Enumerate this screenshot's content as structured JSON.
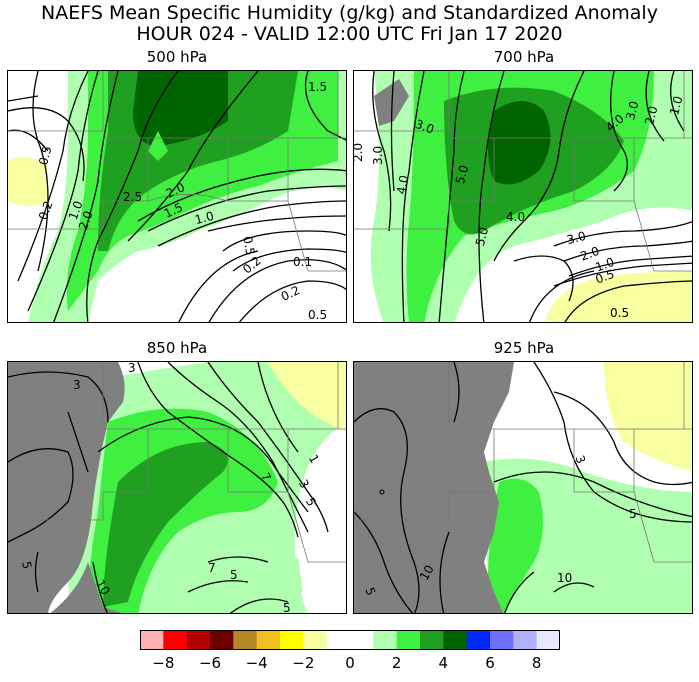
{
  "title_line1": "NAEFS Mean Specific Humidity (g/kg) and Standardized Anomaly",
  "title_line2": "HOUR 024 - VALID 12:00 UTC Fri Jan 17 2020",
  "panels": [
    {
      "id": "p500",
      "title": "500 hPa",
      "contour_labels": [
        "1.5",
        "0.5",
        "0.2",
        "1.0",
        "2.0",
        "2.5",
        "2.0",
        "1.5",
        "1.0",
        "0.5",
        "0.2",
        "0.1",
        "0.2",
        "0.5"
      ]
    },
    {
      "id": "p700",
      "title": "700 hPa",
      "contour_labels": [
        "1.0",
        "2.0",
        "3.0",
        "4.0",
        "3.0",
        "2.0",
        "3.0",
        "4.0",
        "5.0",
        "4.0",
        "5.0",
        "3.0",
        "2.0",
        "1.0",
        "0.5",
        "0.5"
      ]
    },
    {
      "id": "p850",
      "title": "850 hPa",
      "contour_labels": [
        "3",
        "3",
        "1",
        "3",
        "5",
        "7",
        "5",
        "5",
        "7",
        "5",
        "10"
      ]
    },
    {
      "id": "p925",
      "title": "925 hPa",
      "contour_labels": [
        "3",
        "5",
        "10",
        "10",
        "5"
      ]
    }
  ],
  "colorbar": {
    "ticks": [
      "−8",
      "−6",
      "−4",
      "−2",
      "0",
      "2",
      "4",
      "6",
      "8"
    ],
    "colors": [
      "#ffb0b0",
      "#ff0000",
      "#b40000",
      "#6e0000",
      "#b48a28",
      "#f0c020",
      "#ffff00",
      "#f8ffa0",
      "#ffffff",
      "#ffffff",
      "#b0ffb0",
      "#40f040",
      "#20a020",
      "#006400",
      "#0028ff",
      "#7070ff",
      "#b0b0ff",
      "#e8e8ff"
    ]
  },
  "colors": {
    "terrain_mask": "#808080",
    "light_green": "#b0ffb0",
    "green": "#40f040",
    "mid_green": "#20a020",
    "dark_green": "#006400",
    "light_yellow": "#f8ffa0"
  }
}
